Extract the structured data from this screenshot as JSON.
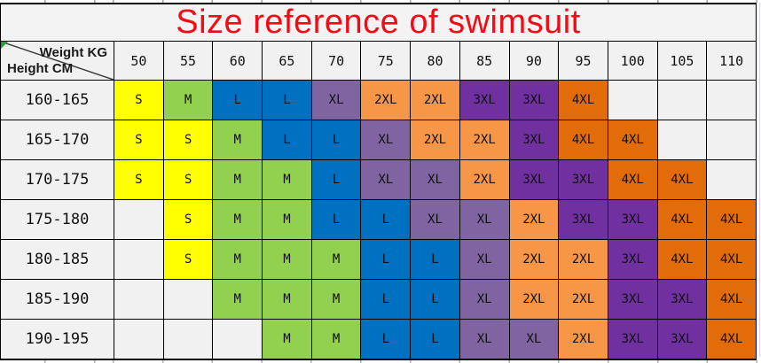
{
  "title": "Size reference of swimsuit",
  "corner": {
    "top_label": "Weight KG",
    "bottom_label": "Height CM"
  },
  "weights": [
    "50",
    "55",
    "60",
    "65",
    "70",
    "75",
    "80",
    "85",
    "90",
    "95",
    "100",
    "105",
    "110"
  ],
  "rows": [
    {
      "height": "160-165",
      "sizes": [
        "S",
        "M",
        "L",
        "L",
        "XL",
        "2XL",
        "2XL",
        "3XL",
        "3XL",
        "4XL",
        "",
        "",
        ""
      ]
    },
    {
      "height": "165-170",
      "sizes": [
        "S",
        "S",
        "M",
        "L",
        "L",
        "XL",
        "2XL",
        "2XL",
        "3XL",
        "4XL",
        "4XL",
        "",
        ""
      ]
    },
    {
      "height": "170-175",
      "sizes": [
        "S",
        "S",
        "M",
        "M",
        "L",
        "XL",
        "XL",
        "2XL",
        "3XL",
        "3XL",
        "4XL",
        "4XL",
        ""
      ]
    },
    {
      "height": "175-180",
      "sizes": [
        "",
        "S",
        "M",
        "M",
        "L",
        "L",
        "XL",
        "XL",
        "2XL",
        "3XL",
        "3XL",
        "4XL",
        "4XL"
      ]
    },
    {
      "height": "180-185",
      "sizes": [
        "",
        "S",
        "M",
        "M",
        "M",
        "L",
        "L",
        "XL",
        "2XL",
        "2XL",
        "3XL",
        "4XL",
        "4XL"
      ]
    },
    {
      "height": "185-190",
      "sizes": [
        "",
        "",
        "M",
        "M",
        "M",
        "L",
        "L",
        "XL",
        "2XL",
        "2XL",
        "3XL",
        "3XL",
        "4XL"
      ]
    },
    {
      "height": "190-195",
      "sizes": [
        "",
        "",
        "",
        "M",
        "M",
        "L",
        "L",
        "XL",
        "XL",
        "2XL",
        "3XL",
        "3XL",
        "4XL"
      ]
    }
  ],
  "colors": {
    "title": "#f50a14",
    "grid": "#000000",
    "cell_bg": "#f2f1f2",
    "sizes": {
      "S": "#ffff00",
      "M": "#92d050",
      "L": "#0070c0",
      "XL": "#8064a2",
      "2XL": "#f79646",
      "3XL": "#7030a0",
      "4XL": "#e26b0a"
    }
  }
}
